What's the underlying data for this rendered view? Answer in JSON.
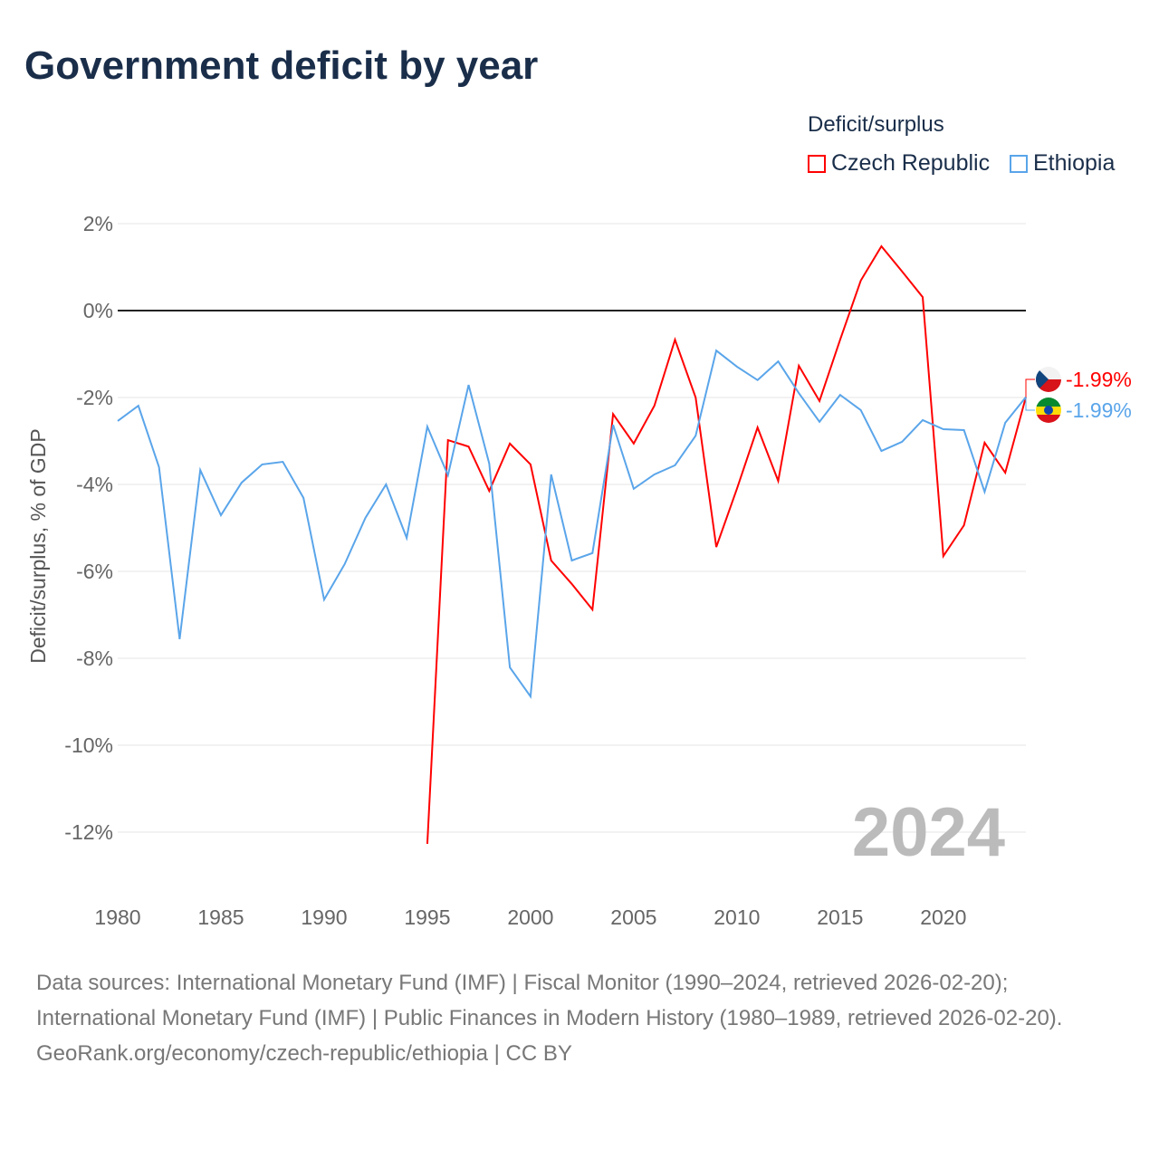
{
  "title": "Government deficit by year",
  "legend": {
    "title": "Deficit/surplus",
    "items": [
      {
        "name": "Czech Republic",
        "color": "#ff0000"
      },
      {
        "name": "Ethiopia",
        "color": "#5aa5ea"
      }
    ]
  },
  "sources": {
    "line1": "Data sources: International Monetary Fund (IMF) | Fiscal Monitor (1990–2024, retrieved 2026-02-20);",
    "line2": "International Monetary Fund (IMF) | Public Finances in Modern History (1980–1989, retrieved 2026-02-20).",
    "line3": "GeoRank.org/economy/czech-republic/ethiopia | CC BY"
  },
  "chart_data": {
    "type": "line",
    "title": "Government deficit by year",
    "xlabel": "",
    "ylabel": "Deficit/surplus, % of GDP",
    "xlim": [
      1980,
      2024
    ],
    "ylim": [
      -13,
      2
    ],
    "xticks": [
      1980,
      1985,
      1990,
      1995,
      2000,
      2005,
      2010,
      2015,
      2020
    ],
    "xtick_labels": [
      "1980",
      "1985",
      "1990",
      "1995",
      "2000",
      "2005",
      "2010",
      "2015",
      "2020"
    ],
    "yticks": [
      2,
      0,
      -2,
      -4,
      -6,
      -8,
      -10,
      -12
    ],
    "ytick_labels": [
      "2%",
      "0%",
      "-2%",
      "-4%",
      "-6%",
      "-8%",
      "-10%",
      "-12%"
    ],
    "watermark_year": "2024",
    "series": [
      {
        "name": "Czech Republic",
        "color": "#ff0000",
        "end_label": "-1.99%",
        "x": [
          1995,
          1996,
          1997,
          1998,
          1999,
          2000,
          2001,
          2002,
          2003,
          2004,
          2005,
          2006,
          2007,
          2008,
          2009,
          2010,
          2011,
          2012,
          2013,
          2014,
          2015,
          2016,
          2017,
          2018,
          2019,
          2020,
          2021,
          2022,
          2023,
          2024
        ],
        "values": [
          -12.27,
          -2.98,
          -3.13,
          -4.15,
          -3.06,
          -3.54,
          -5.75,
          -6.29,
          -6.88,
          -2.38,
          -3.06,
          -2.19,
          -0.67,
          -2.0,
          -5.44,
          -4.1,
          -2.69,
          -3.92,
          -1.27,
          -2.08,
          -0.67,
          0.69,
          1.48,
          0.9,
          0.31,
          -5.65,
          -4.94,
          -3.04,
          -3.73,
          -1.99
        ]
      },
      {
        "name": "Ethiopia",
        "color": "#5aa5ea",
        "end_label": "-1.99%",
        "x": [
          1980,
          1981,
          1982,
          1983,
          1984,
          1985,
          1986,
          1987,
          1988,
          1989,
          1990,
          1991,
          1992,
          1993,
          1994,
          1995,
          1996,
          1997,
          1998,
          1999,
          2000,
          2001,
          2002,
          2003,
          2004,
          2005,
          2006,
          2007,
          2008,
          2009,
          2010,
          2011,
          2012,
          2013,
          2014,
          2015,
          2016,
          2017,
          2018,
          2019,
          2020,
          2021,
          2022,
          2023,
          2024
        ],
        "values": [
          -2.54,
          -2.19,
          -3.6,
          -7.56,
          -3.67,
          -4.71,
          -3.96,
          -3.54,
          -3.48,
          -4.31,
          -6.65,
          -5.83,
          -4.77,
          -4.0,
          -5.23,
          -2.67,
          -3.79,
          -1.71,
          -3.52,
          -8.21,
          -8.88,
          -3.77,
          -5.75,
          -5.58,
          -2.63,
          -4.1,
          -3.77,
          -3.56,
          -2.88,
          -0.92,
          -1.29,
          -1.6,
          -1.17,
          -1.9,
          -2.56,
          -1.94,
          -2.29,
          -3.23,
          -3.02,
          -2.52,
          -2.73,
          -2.75,
          -4.17,
          -2.58,
          -1.99
        ]
      }
    ]
  }
}
